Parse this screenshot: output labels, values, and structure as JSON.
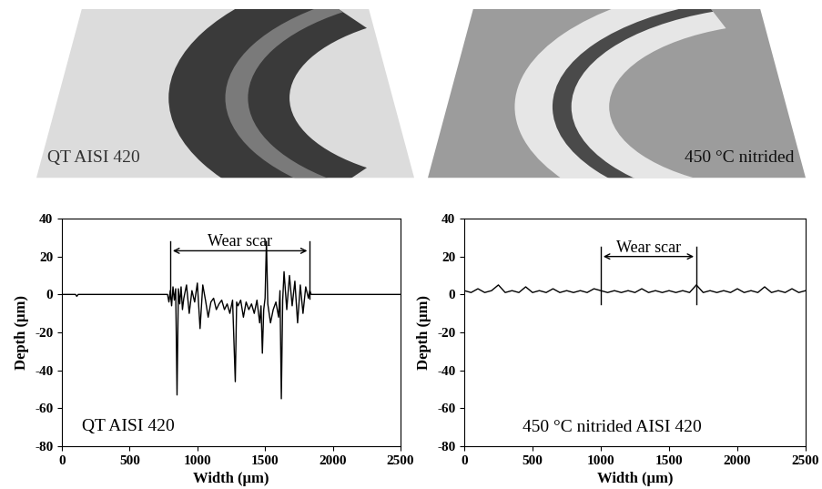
{
  "surface_images": [
    {
      "label": "QT AISI 420"
    },
    {
      "label": "450 °C nitrided"
    }
  ],
  "chart_data": [
    {
      "type": "line",
      "x_label": "Width (μm)",
      "y_label": "Depth (μm)",
      "x": [
        0,
        100,
        110,
        120,
        200,
        500,
        780,
        790,
        800,
        810,
        820,
        830,
        840,
        850,
        860,
        870,
        880,
        890,
        900,
        920,
        940,
        960,
        980,
        1000,
        1020,
        1040,
        1060,
        1080,
        1100,
        1120,
        1140,
        1160,
        1180,
        1200,
        1220,
        1240,
        1260,
        1280,
        1290,
        1300,
        1320,
        1340,
        1360,
        1380,
        1400,
        1420,
        1440,
        1460,
        1470,
        1480,
        1490,
        1500,
        1510,
        1520,
        1540,
        1560,
        1580,
        1600,
        1610,
        1620,
        1630,
        1640,
        1660,
        1680,
        1700,
        1720,
        1740,
        1760,
        1780,
        1800,
        1820,
        1830,
        1840,
        2000,
        2500
      ],
      "values": [
        0,
        0,
        -1,
        0,
        0,
        0,
        0,
        -4,
        2,
        -6,
        4,
        -3,
        3,
        -53,
        3,
        -5,
        4,
        -8,
        -2,
        5,
        -10,
        2,
        -4,
        6,
        -18,
        5,
        -3,
        -12,
        -4,
        -2,
        -8,
        -5,
        -3,
        -8,
        -5,
        -10,
        -3,
        -46,
        -4,
        -6,
        -3,
        -12,
        -4,
        -8,
        -5,
        -10,
        -3,
        -15,
        -6,
        -31,
        -8,
        -2,
        28,
        -5,
        -15,
        -8,
        -4,
        -12,
        2,
        -55,
        -3,
        12,
        -8,
        10,
        -6,
        7,
        -15,
        5,
        -10,
        4,
        -2,
        2,
        0,
        0,
        0
      ],
      "color": "#000000",
      "line_style": "solid",
      "xlim": [
        0,
        2500
      ],
      "xticks": [
        0,
        500,
        1000,
        1500,
        2000,
        2500
      ],
      "ylim": [
        -80,
        40
      ],
      "yticks": [
        -80,
        -60,
        -40,
        -20,
        0,
        20,
        40
      ],
      "annotations": [
        {
          "text": "Wear scar",
          "x_start": 800,
          "x_end": 1830,
          "y": 23
        },
        {
          "text": "QT AISI 420"
        }
      ]
    },
    {
      "type": "line",
      "x_label": "Width (μm)",
      "y_label": "Depth (μm)",
      "x": [
        0,
        50,
        100,
        150,
        200,
        250,
        300,
        350,
        400,
        450,
        500,
        550,
        600,
        650,
        700,
        750,
        800,
        850,
        900,
        950,
        1000,
        1050,
        1100,
        1150,
        1200,
        1250,
        1300,
        1350,
        1400,
        1450,
        1500,
        1550,
        1600,
        1650,
        1700,
        1750,
        1800,
        1850,
        1900,
        1950,
        2000,
        2050,
        2100,
        2150,
        2200,
        2250,
        2300,
        2350,
        2400,
        2450,
        2500
      ],
      "values": [
        2,
        1,
        3,
        1,
        2,
        5,
        1,
        2,
        1,
        4,
        1,
        2,
        1,
        3,
        1,
        2,
        1,
        2,
        1,
        3,
        2,
        1,
        2,
        1,
        2,
        1,
        3,
        1,
        2,
        1,
        2,
        1,
        2,
        1,
        5,
        1,
        2,
        1,
        2,
        1,
        3,
        1,
        2,
        1,
        4,
        1,
        2,
        1,
        3,
        1,
        2
      ],
      "color": "#000000",
      "line_style": "solid",
      "xlim": [
        0,
        2500
      ],
      "xticks": [
        0,
        500,
        1000,
        1500,
        2000,
        2500
      ],
      "ylim": [
        -80,
        40
      ],
      "yticks": [
        -80,
        -60,
        -40,
        -20,
        0,
        20,
        40
      ],
      "annotations": [
        {
          "text": "Wear scar",
          "x_start": 1000,
          "x_end": 1700,
          "y": 20
        },
        {
          "text": "450 °C nitrided AISI 420"
        }
      ]
    }
  ]
}
